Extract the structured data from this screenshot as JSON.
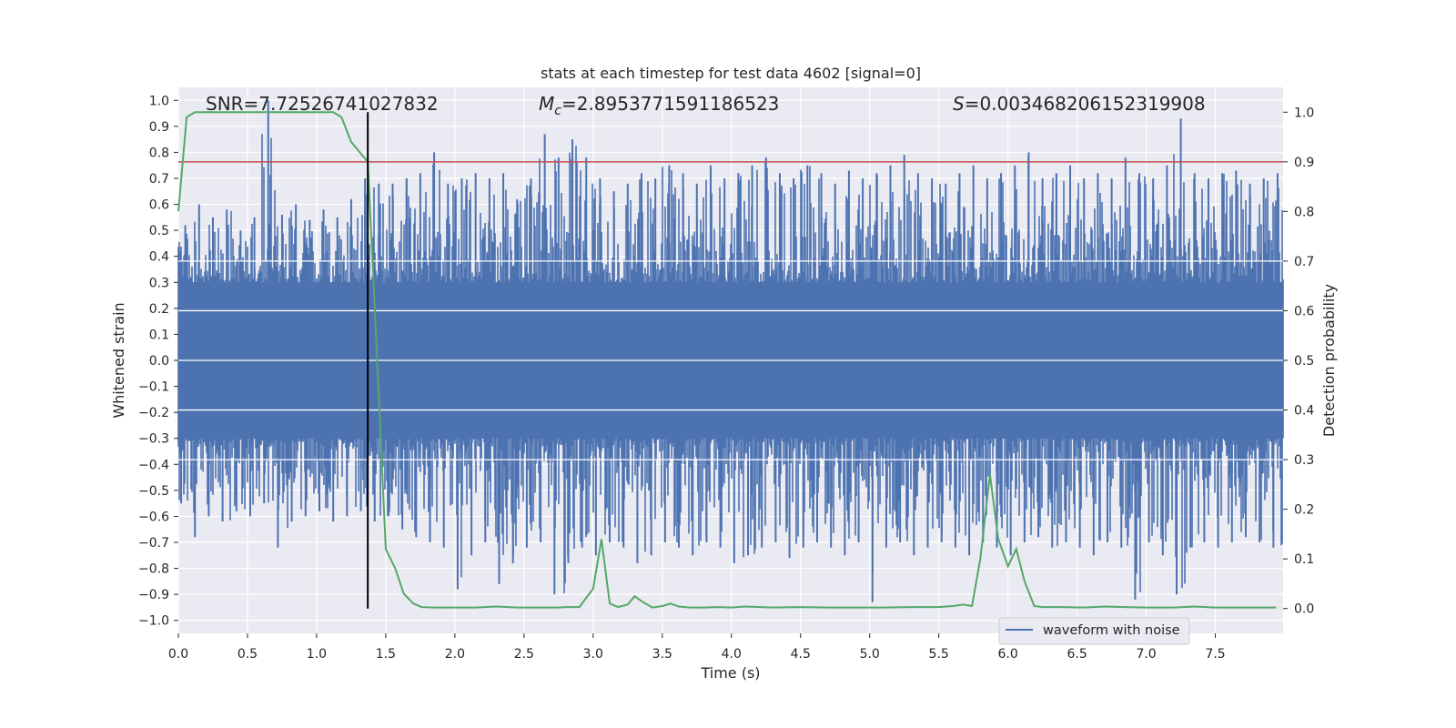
{
  "chart_data": {
    "type": "line",
    "title": "stats at each timestep for test data 4602 [signal=0]",
    "xlabel": "Time (s)",
    "ylabel_left": "Whitened strain",
    "ylabel_right": "Detection probability",
    "xlim": [
      0.0,
      7.99
    ],
    "ylim_left": [
      -1.05,
      1.05
    ],
    "ylim_right": [
      -0.05,
      1.05
    ],
    "x_ticks": [
      "0.0",
      "0.5",
      "1.0",
      "1.5",
      "2.0",
      "2.5",
      "3.0",
      "3.5",
      "4.0",
      "4.5",
      "5.0",
      "5.5",
      "6.0",
      "6.5",
      "7.0",
      "7.5"
    ],
    "y_left_ticks": [
      "1.0",
      "0.9",
      "0.8",
      "0.7",
      "0.6",
      "0.5",
      "0.4",
      "0.3",
      "0.2",
      "0.1",
      "0.0",
      "−0.1",
      "−0.2",
      "−0.3",
      "−0.4",
      "−0.5",
      "−0.6",
      "−0.7",
      "−0.8",
      "−0.9",
      "−1.0"
    ],
    "y_right_ticks": [
      "1.0",
      "0.9",
      "0.8",
      "0.7",
      "0.6",
      "0.5",
      "0.4",
      "0.3",
      "0.2",
      "0.1",
      "0.0"
    ],
    "grid": true,
    "legend_position": "bottom-right",
    "annotations": {
      "snr": "SNR=7.72526741027832",
      "mc_symbol": "M",
      "mc_sub": "c",
      "mc_value": "=2.8953771591186523",
      "s_symbol": "S",
      "s_value": "=0.003468206152319908"
    },
    "threshold_probability": 0.9,
    "detection_time": 1.37,
    "colors": {
      "waveform": "#4c72b0",
      "probability": "#55a868",
      "threshold": "#c44e52",
      "marker": "#000000",
      "background": "#eaeaf2",
      "grid": "#ffffff"
    },
    "series": [
      {
        "name": "waveform with noise",
        "axis": "left",
        "description_of_envelope": "dense noise trace",
        "x": [
          0.0,
          0.1,
          0.2,
          0.3,
          0.4,
          0.5,
          0.6,
          0.7,
          0.8,
          0.9,
          1.0,
          1.1,
          1.2,
          1.3,
          1.4,
          1.5,
          1.6,
          1.7,
          1.8,
          1.9,
          2.0,
          2.1,
          2.2,
          2.3,
          2.4,
          2.5,
          2.6,
          2.7,
          2.8,
          2.9,
          3.0,
          3.1,
          3.2,
          3.3,
          3.4,
          3.5,
          3.6,
          3.7,
          3.8,
          3.9,
          4.0,
          4.1,
          4.2,
          4.3,
          4.4,
          4.5,
          4.6,
          4.7,
          4.8,
          4.9,
          5.0,
          5.1,
          5.2,
          5.3,
          5.4,
          5.5,
          5.6,
          5.7,
          5.8,
          5.9,
          6.0,
          6.1,
          6.2,
          6.3,
          6.4,
          6.5,
          6.6,
          6.7,
          6.8,
          6.9,
          7.0,
          7.1,
          7.2,
          7.3,
          7.4,
          7.5,
          7.6,
          7.7,
          7.8,
          7.9
        ],
        "y_max": [
          0.52,
          0.6,
          0.55,
          0.58,
          0.5,
          0.55,
          1.0,
          0.56,
          0.6,
          0.54,
          0.58,
          0.55,
          0.62,
          0.7,
          0.68,
          0.68,
          0.7,
          0.72,
          0.8,
          0.68,
          0.7,
          0.72,
          0.7,
          0.72,
          0.62,
          0.7,
          0.87,
          0.78,
          0.85,
          0.78,
          0.7,
          0.65,
          0.68,
          0.72,
          0.7,
          0.75,
          0.72,
          0.68,
          0.75,
          0.7,
          0.72,
          0.75,
          0.78,
          0.72,
          0.7,
          0.75,
          0.72,
          0.68,
          0.73,
          0.7,
          0.72,
          0.75,
          0.79,
          0.72,
          0.7,
          0.68,
          0.72,
          0.75,
          0.7,
          0.72,
          0.75,
          0.8,
          0.7,
          0.72,
          0.75,
          0.7,
          0.72,
          0.7,
          0.78,
          0.72,
          0.7,
          0.75,
          0.93,
          0.72,
          0.7,
          0.72,
          0.73,
          0.68,
          0.7,
          0.72
        ],
        "y_min": [
          -0.55,
          -0.68,
          -0.6,
          -0.62,
          -0.58,
          -0.6,
          -0.55,
          -0.72,
          -0.62,
          -0.6,
          -0.58,
          -0.62,
          -0.6,
          -0.58,
          -0.62,
          -0.6,
          -0.65,
          -0.68,
          -0.7,
          -0.72,
          -0.88,
          -0.75,
          -0.7,
          -0.86,
          -0.78,
          -0.72,
          -0.7,
          -0.9,
          -0.78,
          -0.72,
          -0.75,
          -0.7,
          -0.72,
          -0.78,
          -0.75,
          -0.7,
          -0.72,
          -0.75,
          -0.7,
          -0.72,
          -0.78,
          -0.75,
          -0.72,
          -0.7,
          -0.76,
          -0.72,
          -0.7,
          -0.72,
          -0.75,
          -0.7,
          -0.93,
          -0.72,
          -0.7,
          -0.75,
          -0.72,
          -0.7,
          -0.72,
          -0.75,
          -0.7,
          -0.72,
          -0.75,
          -0.7,
          -0.68,
          -0.72,
          -0.7,
          -0.72,
          -0.75,
          -0.7,
          -0.72,
          -0.92,
          -0.7,
          -0.75,
          -0.9,
          -0.72,
          -0.7,
          -0.72,
          -0.7,
          -0.68,
          -0.7,
          -0.72
        ]
      },
      {
        "name": "",
        "axis": "right",
        "x": [
          0.0,
          0.06,
          0.12,
          0.2,
          0.4,
          0.6,
          0.8,
          1.0,
          1.12,
          1.18,
          1.25,
          1.37,
          1.43,
          1.5,
          1.57,
          1.63,
          1.7,
          1.76,
          1.85,
          2.0,
          2.15,
          2.3,
          2.45,
          2.6,
          2.75,
          2.8,
          2.9,
          3.0,
          3.06,
          3.12,
          3.18,
          3.25,
          3.3,
          3.36,
          3.43,
          3.5,
          3.56,
          3.62,
          3.7,
          3.8,
          3.9,
          4.0,
          4.1,
          4.3,
          4.5,
          4.7,
          4.9,
          5.1,
          5.3,
          5.5,
          5.6,
          5.68,
          5.74,
          5.8,
          5.87,
          5.93,
          6.0,
          6.06,
          6.12,
          6.19,
          6.25,
          6.4,
          6.55,
          6.7,
          6.85,
          7.0,
          7.2,
          7.35,
          7.5,
          7.7,
          7.94
        ],
        "y": [
          0.8,
          0.99,
          1.0,
          1.0,
          1.0,
          1.0,
          1.0,
          1.0,
          1.0,
          0.99,
          0.94,
          0.9,
          0.55,
          0.12,
          0.08,
          0.03,
          0.01,
          0.003,
          0.002,
          0.002,
          0.002,
          0.004,
          0.002,
          0.002,
          0.002,
          0.003,
          0.003,
          0.04,
          0.14,
          0.01,
          0.003,
          0.008,
          0.025,
          0.013,
          0.002,
          0.005,
          0.01,
          0.004,
          0.002,
          0.002,
          0.003,
          0.002,
          0.004,
          0.002,
          0.003,
          0.002,
          0.002,
          0.002,
          0.003,
          0.003,
          0.005,
          0.008,
          0.005,
          0.1,
          0.27,
          0.14,
          0.085,
          0.12,
          0.055,
          0.005,
          0.003,
          0.003,
          0.002,
          0.004,
          0.003,
          0.002,
          0.002,
          0.004,
          0.002,
          0.002,
          0.002
        ]
      }
    ]
  }
}
